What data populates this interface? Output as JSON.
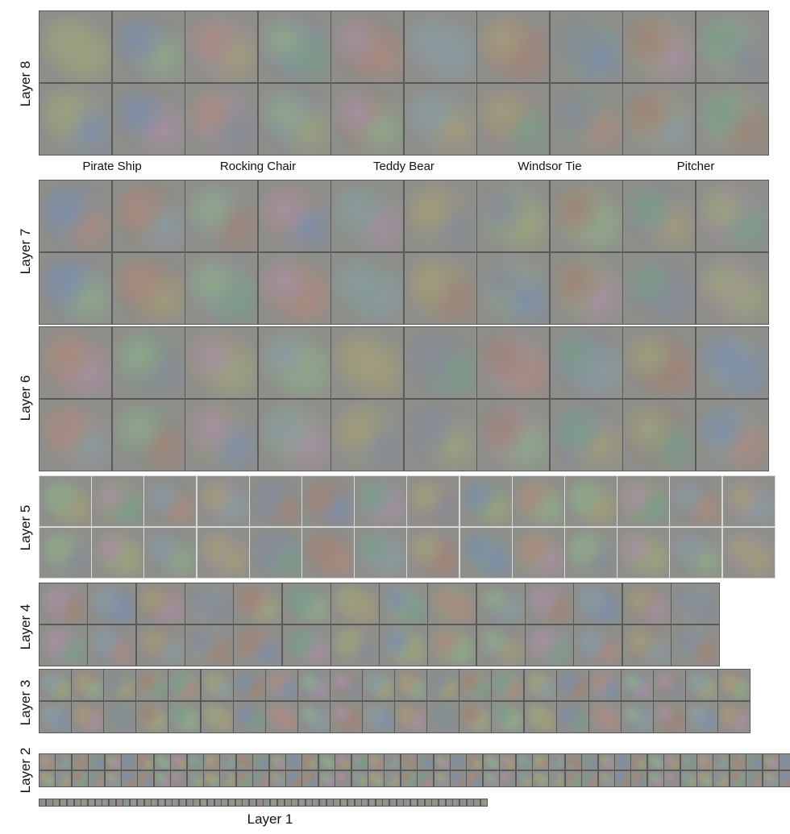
{
  "layers": [
    {
      "id": "layer8",
      "label": "Layer 8",
      "cols": 10,
      "rows": 2
    },
    {
      "id": "layer7",
      "label": "Layer 7",
      "cols": 10,
      "rows": 2
    },
    {
      "id": "layer6",
      "label": "Layer 6",
      "cols": 10,
      "rows": 2
    },
    {
      "id": "layer5",
      "label": "Layer 5",
      "cols": 14,
      "rows": 2
    },
    {
      "id": "layer4",
      "label": "Layer 4",
      "cols": 14,
      "rows": 2
    },
    {
      "id": "layer3",
      "label": "Layer 3",
      "cols": 22,
      "rows": 2
    },
    {
      "id": "layer2",
      "label": "Layer 2",
      "cols": 48,
      "rows": 2
    },
    {
      "id": "layer1",
      "label": "Layer 1",
      "cols": 64,
      "rows": 1
    }
  ],
  "class_labels": [
    "Pirate Ship",
    "Rocking Chair",
    "Teddy Bear",
    "Windsor Tie",
    "Pitcher"
  ],
  "palette": [
    "#9aa07f",
    "#7f8fa6",
    "#a68a7f",
    "#8fa68a",
    "#a3909e",
    "#8b9a9e",
    "#a09a7c",
    "#878c95",
    "#9c8478",
    "#7d9a8a"
  ]
}
